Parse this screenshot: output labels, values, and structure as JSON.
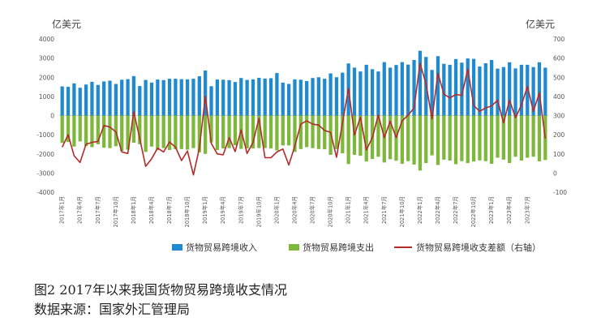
{
  "caption": {
    "figure": "图2   2017年以来我国货物贸易跨境收支情况",
    "source": "数据来源：国家外汇管理局"
  },
  "chart_data": {
    "type": "bar",
    "left_unit": "亿美元",
    "right_unit": "亿美元",
    "left_ylim": [
      -4000,
      4000
    ],
    "left_ticks": [
      -4000,
      -3000,
      -2000,
      -1000,
      0,
      1000,
      2000,
      3000,
      4000
    ],
    "right_ylim": [
      -100,
      700
    ],
    "right_ticks": [
      -100,
      0,
      100,
      200,
      300,
      400,
      500,
      600,
      700
    ],
    "x_labels": [
      "2017年1月",
      "2017年4月",
      "2017年7月",
      "2017年10月",
      "2018年1月",
      "2018年4月",
      "2018年7月",
      "2018年10月",
      "2019年1月",
      "2019年4月",
      "2019年7月",
      "2019年10月",
      "2020年1月",
      "2020年4月",
      "2020年7月",
      "2020年10月",
      "2021年1月",
      "2021年4月",
      "2021年7月",
      "2021年10月",
      "2022年1月",
      "2022年4月",
      "2022年7月",
      "2022年10月",
      "2023年1月",
      "2023年4月",
      "2023年7月"
    ],
    "legend_position": "bottom",
    "series": [
      {
        "name": "货物贸易跨境收入",
        "color": "#1f8ad0",
        "axis": "left",
        "type": "bar",
        "values": [
          1520,
          1500,
          1680,
          1450,
          1620,
          1760,
          1600,
          1780,
          1820,
          1650,
          1870,
          1900,
          2060,
          1540,
          1860,
          1720,
          1880,
          1850,
          1920,
          1920,
          1900,
          1890,
          1920,
          2050,
          2350,
          1530,
          1880,
          1870,
          1850,
          1750,
          1960,
          1860,
          1890,
          1970,
          1930,
          1950,
          2220,
          1720,
          1650,
          1890,
          1870,
          1800,
          1960,
          2000,
          1920,
          2200,
          2000,
          2240,
          2720,
          2500,
          2300,
          2650,
          2420,
          2300,
          2790,
          2500,
          2640,
          2790,
          2660,
          2900,
          3380,
          3060,
          2380,
          3100,
          2700,
          2650,
          2950,
          2760,
          2980,
          2960,
          2560,
          2730,
          2900,
          2450,
          2530,
          2780,
          2460,
          2650,
          2650,
          2530,
          2780,
          2500
        ]
      },
      {
        "name": "货物贸易跨境支出",
        "color": "#7db83a",
        "axis": "left",
        "type": "bar",
        "values": [
          -1430,
          -1380,
          -1620,
          -1350,
          -1600,
          -1650,
          -1500,
          -1680,
          -1700,
          -1600,
          -1850,
          -1780,
          -1420,
          -1500,
          -1900,
          -1620,
          -1800,
          -1700,
          -1800,
          -1760,
          -1750,
          -1780,
          -1700,
          -1920,
          -2000,
          -1400,
          -1800,
          -1720,
          -1700,
          -1550,
          -1740,
          -1720,
          -1720,
          -1700,
          -1700,
          -1720,
          -1820,
          -1560,
          -1560,
          -1900,
          -1750,
          -1650,
          -1700,
          -1750,
          -1760,
          -2050,
          -1750,
          -1970,
          -2530,
          -2050,
          -2100,
          -2400,
          -2270,
          -2150,
          -2450,
          -2280,
          -2360,
          -2520,
          -2380,
          -2560,
          -2870,
          -2480,
          -2080,
          -2580,
          -2300,
          -2350,
          -2540,
          -2380,
          -2480,
          -2400,
          -2340,
          -2380,
          -2520,
          -2200,
          -2300,
          -2480,
          -2150,
          -2350,
          -2200,
          -2150,
          -2390,
          -2320
        ]
      },
      {
        "name": "货物贸易跨境收支差额（右轴）",
        "color": "#b32b2b",
        "axis": "right",
        "type": "line",
        "values": [
          135,
          200,
          90,
          55,
          150,
          160,
          165,
          248,
          240,
          215,
          110,
          102,
          320,
          180,
          35,
          75,
          130,
          110,
          162,
          135,
          65,
          115,
          -10,
          130,
          400,
          155,
          100,
          95,
          185,
          112,
          225,
          102,
          160,
          285,
          80,
          80,
          110,
          125,
          42,
          140,
          255,
          272,
          255,
          250,
          222,
          212,
          82,
          262,
          442,
          198,
          292,
          120,
          185,
          302,
          185,
          270,
          185,
          272,
          302,
          340,
          572,
          465,
          282,
          520,
          412,
          392,
          410,
          405,
          542,
          352,
          322,
          340,
          350,
          380,
          262,
          380,
          288,
          355,
          452,
          322,
          418,
          180
        ]
      }
    ]
  }
}
